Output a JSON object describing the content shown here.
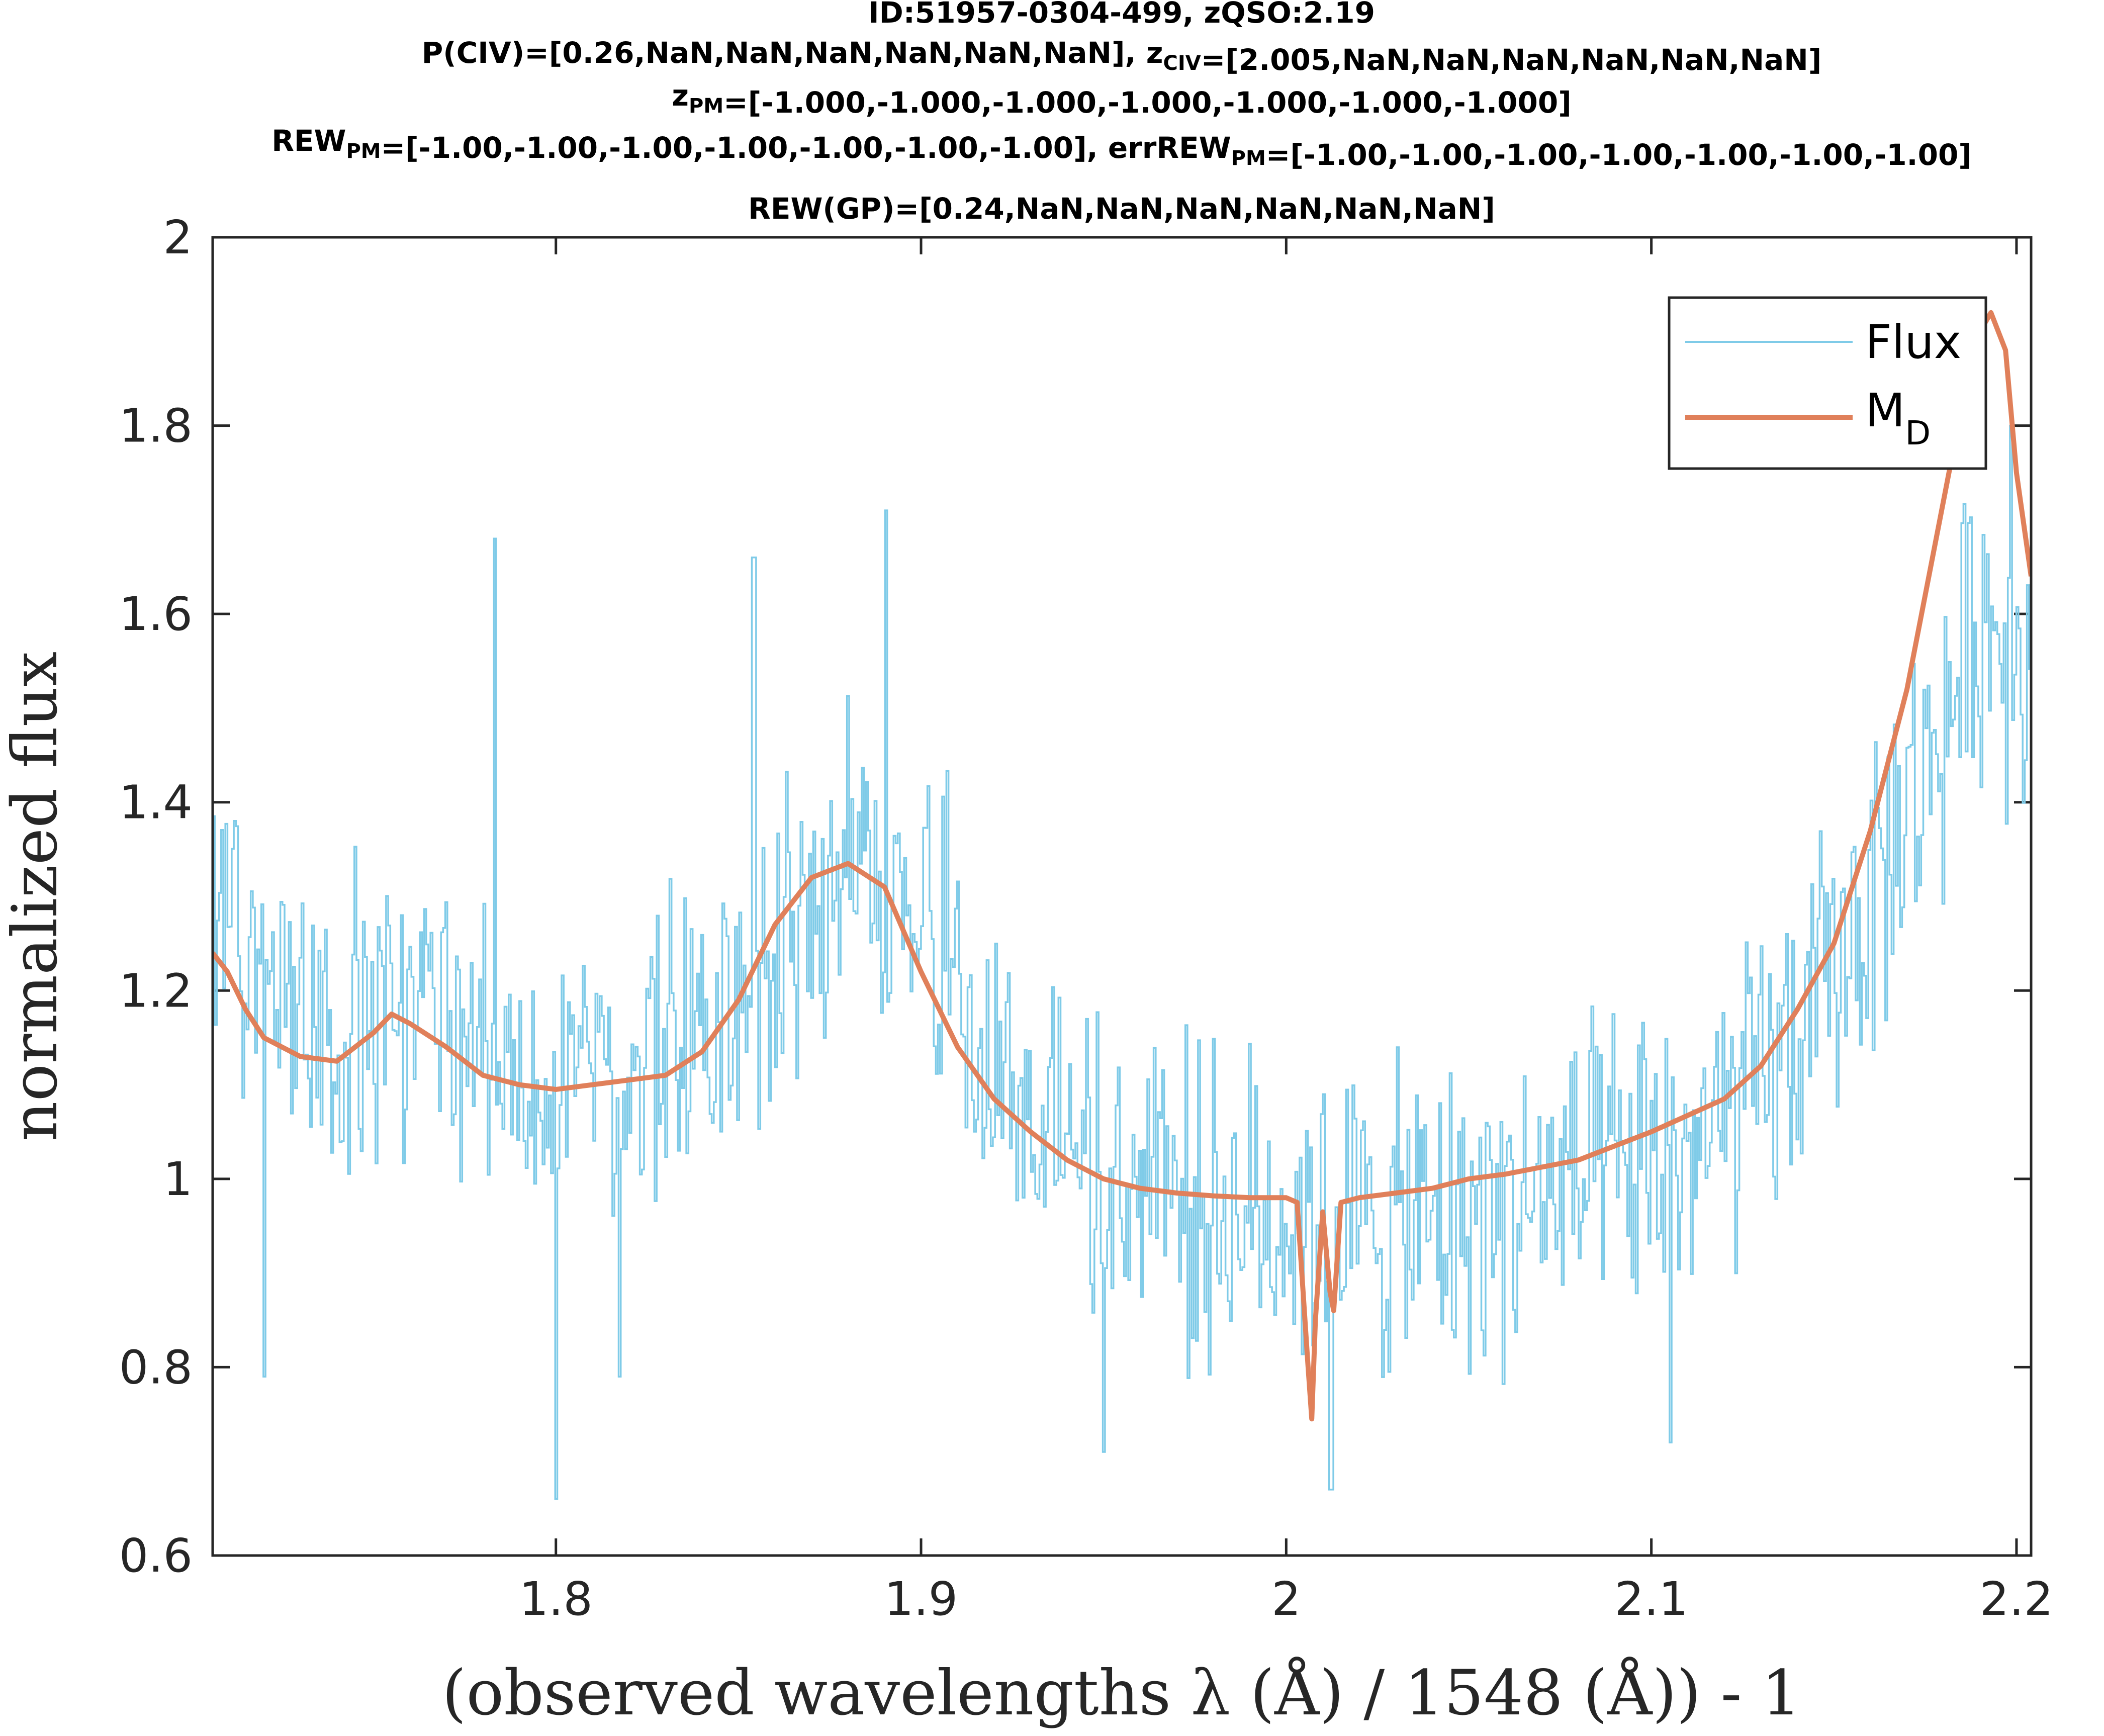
{
  "chart_data": {
    "type": "line",
    "title_lines": [
      [
        {
          "t": "ID:51957-0304-499, zQSO:2.19"
        }
      ],
      [
        {
          "t": "P(CIV)=[0.26,NaN,NaN,NaN,NaN,NaN,NaN], z"
        },
        {
          "t": "CIV",
          "sub": true
        },
        {
          "t": "=[2.005,NaN,NaN,NaN,NaN,NaN,NaN]"
        }
      ],
      [
        {
          "t": "z"
        },
        {
          "t": "PM",
          "sub": true
        },
        {
          "t": "=[-1.000,-1.000,-1.000,-1.000,-1.000,-1.000,-1.000]"
        }
      ],
      [
        {
          "t": "REW"
        },
        {
          "t": "PM",
          "sub": true
        },
        {
          "t": "=[-1.00,-1.00,-1.00,-1.00,-1.00,-1.00,-1.00], errREW"
        },
        {
          "t": "PM",
          "sub": true
        },
        {
          "t": "=[-1.00,-1.00,-1.00,-1.00,-1.00,-1.00,-1.00]"
        }
      ],
      [
        {
          "t": "REW(GP)=[0.24,NaN,NaN,NaN,NaN,NaN,NaN]"
        }
      ]
    ],
    "xlabel": "(observed wavelengths λ (Å) / 1548 (Å)) - 1",
    "ylabel": "normalized flux",
    "xlim": [
      1.706,
      2.204
    ],
    "ylim": [
      0.6,
      2.0
    ],
    "xticks": [
      "1.8",
      "1.9",
      "2",
      "2.1",
      "2.2"
    ],
    "yticks": [
      "0.6",
      "0.8",
      "1",
      "1.2",
      "1.4",
      "1.6",
      "1.8",
      "2"
    ],
    "grid": false,
    "legend_position": "top-right",
    "series": [
      {
        "name": "Flux",
        "color": "#7fcbe8",
        "style": "stairs",
        "noise_amplitude": 0.17,
        "x": [
          1.706,
          1.72,
          1.74,
          1.76,
          1.78,
          1.8,
          1.82,
          1.84,
          1.86,
          1.88,
          1.9,
          1.92,
          1.94,
          1.96,
          1.98,
          2.0,
          2.02,
          2.04,
          2.06,
          2.08,
          2.1,
          2.12,
          2.14,
          2.16,
          2.18,
          2.19,
          2.204
        ],
        "y": [
          1.26,
          1.2,
          1.15,
          1.18,
          1.13,
          1.1,
          1.11,
          1.14,
          1.24,
          1.34,
          1.3,
          1.12,
          1.05,
          0.99,
          0.97,
          0.96,
          0.95,
          0.95,
          0.97,
          0.99,
          1.01,
          1.05,
          1.15,
          1.3,
          1.48,
          1.6,
          1.55
        ],
        "dips": [
          {
            "x": 1.8,
            "y": 0.66
          },
          {
            "x": 1.72,
            "y": 0.79
          },
          {
            "x": 1.817,
            "y": 0.79
          },
          {
            "x": 1.95,
            "y": 0.71
          },
          {
            "x": 2.012,
            "y": 0.67
          },
          {
            "x": 2.105,
            "y": 0.72
          }
        ],
        "spikes": [
          {
            "x": 1.783,
            "y": 1.68
          },
          {
            "x": 1.89,
            "y": 1.71
          },
          {
            "x": 1.854,
            "y": 1.66
          },
          {
            "x": 2.198,
            "y": 1.8
          }
        ]
      },
      {
        "name": "M",
        "name_sub": "D",
        "color": "#e0805a",
        "x": [
          1.706,
          1.71,
          1.715,
          1.72,
          1.73,
          1.74,
          1.75,
          1.755,
          1.76,
          1.77,
          1.78,
          1.79,
          1.8,
          1.81,
          1.82,
          1.83,
          1.84,
          1.85,
          1.86,
          1.87,
          1.88,
          1.89,
          1.9,
          1.91,
          1.92,
          1.93,
          1.94,
          1.95,
          1.96,
          1.97,
          1.98,
          1.99,
          2.0,
          2.003,
          2.006,
          2.007,
          2.008,
          2.01,
          2.012,
          2.013,
          2.015,
          2.02,
          2.03,
          2.04,
          2.05,
          2.06,
          2.08,
          2.1,
          2.12,
          2.13,
          2.14,
          2.15,
          2.16,
          2.17,
          2.18,
          2.185,
          2.19,
          2.193,
          2.197,
          2.2,
          2.204
        ],
        "y": [
          1.24,
          1.22,
          1.18,
          1.15,
          1.13,
          1.125,
          1.155,
          1.175,
          1.165,
          1.14,
          1.11,
          1.1,
          1.095,
          1.1,
          1.105,
          1.11,
          1.135,
          1.19,
          1.27,
          1.32,
          1.335,
          1.31,
          1.22,
          1.14,
          1.085,
          1.05,
          1.02,
          1.0,
          0.99,
          0.985,
          0.982,
          0.98,
          0.98,
          0.975,
          0.8,
          0.745,
          0.85,
          0.965,
          0.88,
          0.86,
          0.975,
          0.98,
          0.985,
          0.99,
          1.0,
          1.005,
          1.02,
          1.05,
          1.085,
          1.12,
          1.18,
          1.25,
          1.37,
          1.52,
          1.72,
          1.82,
          1.9,
          1.92,
          1.88,
          1.75,
          1.64
        ]
      }
    ]
  }
}
